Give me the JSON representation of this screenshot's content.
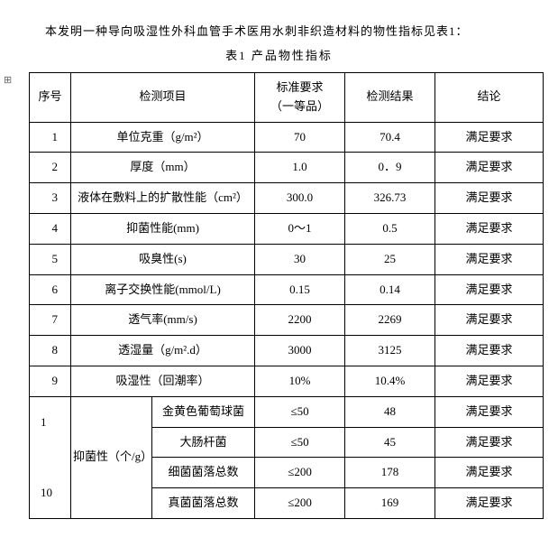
{
  "intro": "本发明一种导向吸湿性外科血管手术医用水刺非织造材料的物性指标见表1：",
  "caption": "表1  产品物性指标",
  "page_mark": "⊞",
  "headers": {
    "num": "序号",
    "item": "检测项目",
    "std_l1": "标准要求",
    "std_l2": "（一等品）",
    "result": "检测结果",
    "conclusion": "结论"
  },
  "rows": [
    {
      "n": "1",
      "item": "单位克重（g/m²）",
      "std": "70",
      "res": "70.4",
      "conc": "满足要求"
    },
    {
      "n": "2",
      "item": "厚度（mm）",
      "std": "1.0",
      "res": "0．9",
      "conc": "满足要求"
    },
    {
      "n": "3",
      "item": "液体在敷料上的扩散性能（cm²）",
      "std": "300.0",
      "res": "326.73",
      "conc": "满足要求"
    },
    {
      "n": "4",
      "item": "抑菌性能(mm)",
      "std": "0～1",
      "res": "0.5",
      "conc": "满足要求"
    },
    {
      "n": "5",
      "item": "吸臭性(s)",
      "std": "30",
      "res": "25",
      "conc": "满足要求"
    },
    {
      "n": "6",
      "item": "离子交换性能(mmol/L)",
      "std": "0.15",
      "res": "0.14",
      "conc": "满足要求"
    },
    {
      "n": "7",
      "item": "透气率(mm/s)",
      "std": "2200",
      "res": "2269",
      "conc": "满足要求"
    },
    {
      "n": "8",
      "item": "透湿量（g/m².d）",
      "std": "3000",
      "res": "3125",
      "conc": "满足要求"
    },
    {
      "n": "9",
      "item": "吸湿性（回潮率）",
      "std": "10%",
      "res": "10.4%",
      "conc": "满足要求"
    }
  ],
  "group": {
    "num_a": "1",
    "num_b": "10",
    "label": "抑菌性（个/g）",
    "sub": [
      {
        "name": "金黄色葡萄球菌",
        "std": "≤50",
        "res": "48",
        "conc": "满足要求"
      },
      {
        "name": "大肠杆菌",
        "std": "≤50",
        "res": "45",
        "conc": "满足要求"
      },
      {
        "name": "细菌菌落总数",
        "std": "≤200",
        "res": "178",
        "conc": "满足要求"
      },
      {
        "name": "真菌菌落总数",
        "std": "≤200",
        "res": "169",
        "conc": "满足要求"
      }
    ]
  }
}
